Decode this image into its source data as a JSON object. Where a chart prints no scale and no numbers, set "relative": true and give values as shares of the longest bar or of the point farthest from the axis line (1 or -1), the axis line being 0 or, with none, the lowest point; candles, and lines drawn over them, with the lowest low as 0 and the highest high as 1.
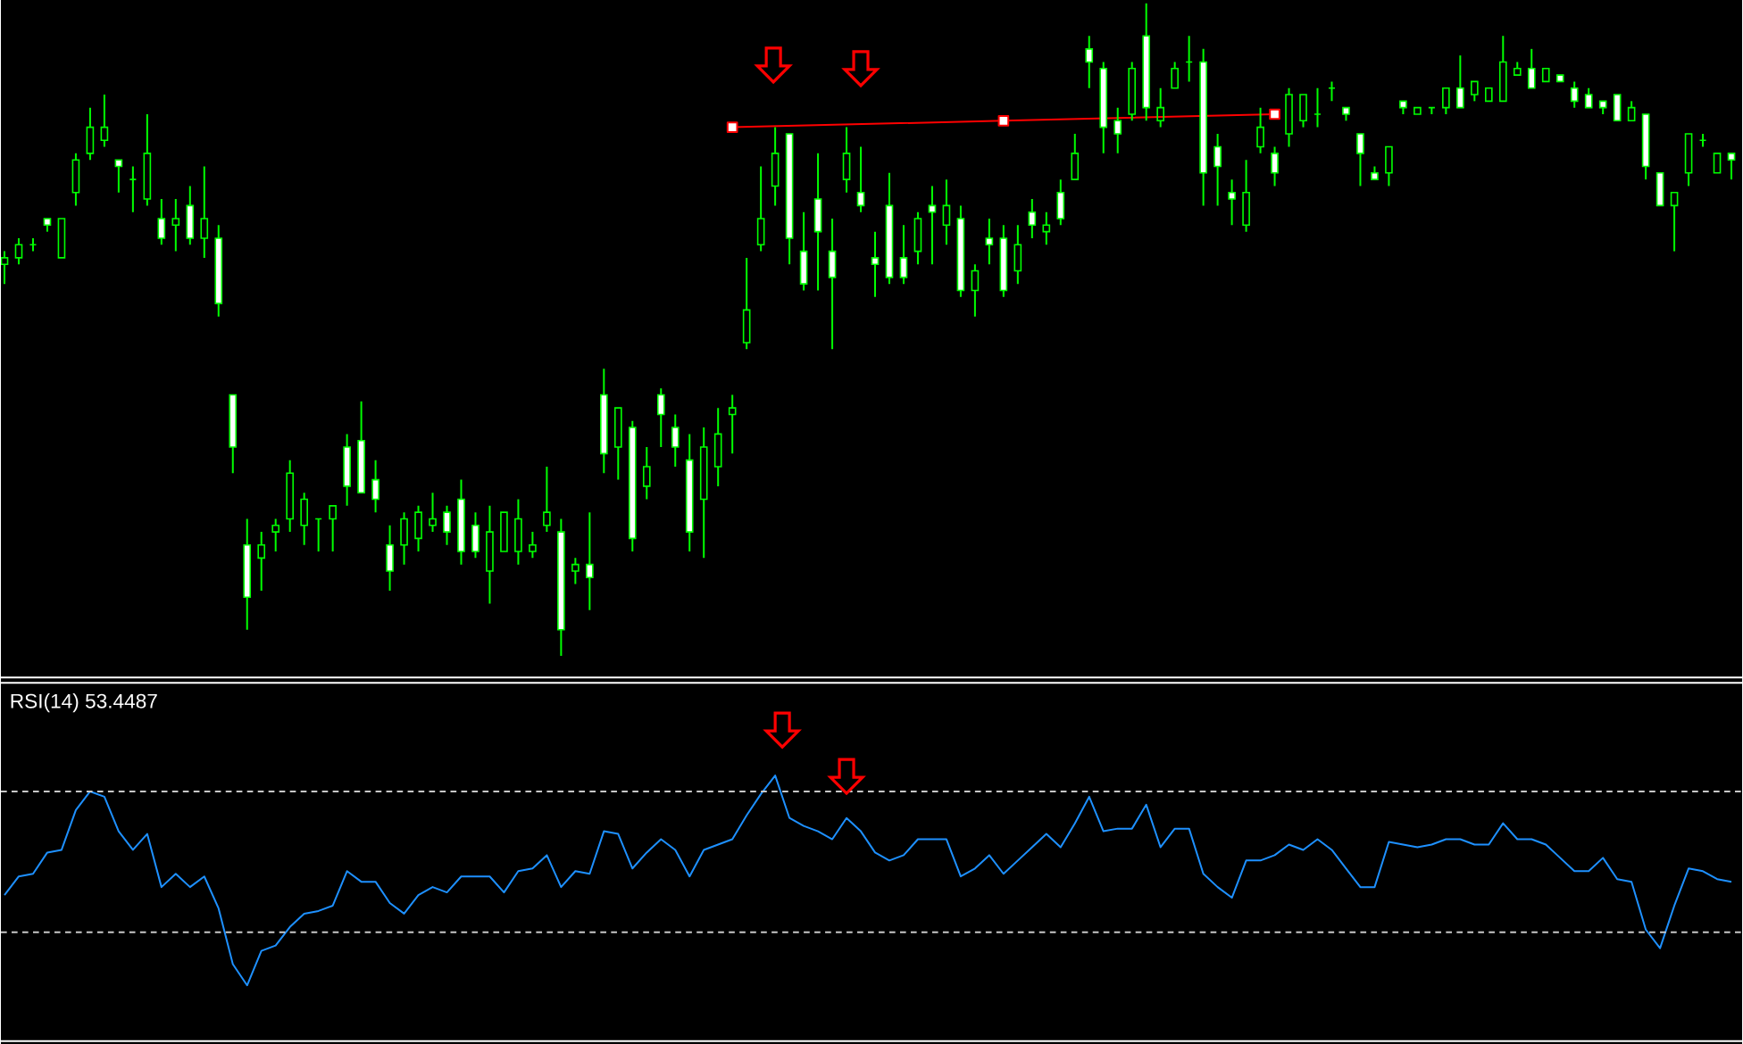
{
  "chart_data": [
    {
      "type": "candlestick",
      "relative": true,
      "color": "#00ff00",
      "categories": [
        null,
        null,
        null,
        null,
        null,
        null,
        null,
        null,
        null,
        null,
        null,
        null,
        null,
        null,
        null,
        null,
        null,
        null,
        null,
        null,
        null,
        null,
        null,
        null,
        null,
        null,
        null,
        null,
        null,
        null,
        null,
        null,
        null,
        null,
        null,
        null,
        null,
        null,
        null,
        null,
        null,
        null,
        null,
        null,
        null,
        null,
        null,
        null,
        null,
        null,
        null,
        null,
        null,
        null,
        null,
        null,
        null,
        null,
        null,
        null,
        null,
        null,
        null,
        null,
        null,
        null,
        null,
        null,
        null,
        null,
        null,
        null,
        null,
        null,
        null,
        null,
        null,
        null,
        null,
        null,
        null,
        null,
        null,
        null,
        null,
        null,
        null,
        null,
        null,
        null,
        null,
        null,
        null,
        null,
        null,
        null,
        null,
        null,
        null,
        null,
        null,
        null,
        null,
        null,
        null,
        null,
        null,
        null,
        null,
        null,
        null,
        null,
        null,
        null,
        null,
        null,
        null,
        null,
        null,
        null,
        null,
        null
      ],
      "ohlc": [
        [
          0.6,
          0.62,
          0.57,
          0.61
        ],
        [
          0.61,
          0.64,
          0.6,
          0.63
        ],
        [
          0.63,
          0.64,
          0.62,
          0.63
        ],
        [
          0.67,
          0.67,
          0.65,
          0.66
        ],
        [
          0.61,
          0.67,
          0.61,
          0.67
        ],
        [
          0.71,
          0.77,
          0.69,
          0.76
        ],
        [
          0.77,
          0.84,
          0.76,
          0.81
        ],
        [
          0.79,
          0.86,
          0.78,
          0.81
        ],
        [
          0.76,
          0.76,
          0.71,
          0.75
        ],
        [
          0.73,
          0.75,
          0.68,
          0.73
        ],
        [
          0.7,
          0.83,
          0.69,
          0.77
        ],
        [
          0.67,
          0.7,
          0.63,
          0.64
        ],
        [
          0.66,
          0.7,
          0.62,
          0.67
        ],
        [
          0.69,
          0.72,
          0.63,
          0.64
        ],
        [
          0.64,
          0.75,
          0.61,
          0.67
        ],
        [
          0.64,
          0.66,
          0.52,
          0.54
        ],
        [
          0.4,
          0.4,
          0.28,
          0.32
        ],
        [
          0.17,
          0.21,
          0.04,
          0.09
        ],
        [
          0.15,
          0.19,
          0.1,
          0.17
        ],
        [
          0.19,
          0.21,
          0.16,
          0.2
        ],
        [
          0.21,
          0.3,
          0.19,
          0.28
        ],
        [
          0.2,
          0.25,
          0.17,
          0.24
        ],
        [
          0.21,
          0.21,
          0.16,
          0.21
        ],
        [
          0.21,
          0.23,
          0.16,
          0.23
        ],
        [
          0.32,
          0.34,
          0.23,
          0.26
        ],
        [
          0.33,
          0.39,
          0.25,
          0.25
        ],
        [
          0.27,
          0.3,
          0.22,
          0.24
        ],
        [
          0.17,
          0.2,
          0.1,
          0.13
        ],
        [
          0.17,
          0.22,
          0.14,
          0.21
        ],
        [
          0.18,
          0.23,
          0.16,
          0.22
        ],
        [
          0.2,
          0.25,
          0.19,
          0.21
        ],
        [
          0.22,
          0.23,
          0.17,
          0.19
        ],
        [
          0.24,
          0.27,
          0.14,
          0.16
        ],
        [
          0.2,
          0.22,
          0.15,
          0.16
        ],
        [
          0.13,
          0.23,
          0.08,
          0.19
        ],
        [
          0.16,
          0.22,
          0.16,
          0.22
        ],
        [
          0.16,
          0.24,
          0.14,
          0.21
        ],
        [
          0.16,
          0.19,
          0.15,
          0.17
        ],
        [
          0.2,
          0.29,
          0.19,
          0.22
        ],
        [
          0.19,
          0.21,
          0,
          0.04
        ],
        [
          0.13,
          0.15,
          0.11,
          0.14
        ],
        [
          0.14,
          0.22,
          0.07,
          0.12
        ],
        [
          0.4,
          0.44,
          0.28,
          0.31
        ],
        [
          0.32,
          0.38,
          0.27,
          0.38
        ],
        [
          0.35,
          0.36,
          0.16,
          0.18
        ],
        [
          0.26,
          0.32,
          0.24,
          0.29
        ],
        [
          0.4,
          0.41,
          0.32,
          0.37
        ],
        [
          0.35,
          0.37,
          0.29,
          0.32
        ],
        [
          0.3,
          0.34,
          0.16,
          0.19
        ],
        [
          0.24,
          0.35,
          0.15,
          0.32
        ],
        [
          0.29,
          0.38,
          0.26,
          0.34
        ],
        [
          0.37,
          0.4,
          0.31,
          0.38
        ],
        [
          0.48,
          0.61,
          0.47,
          0.53
        ],
        [
          0.63,
          0.75,
          0.62,
          0.67
        ],
        [
          0.72,
          0.81,
          0.69,
          0.77
        ],
        [
          0.8,
          0.8,
          0.6,
          0.64
        ],
        [
          0.62,
          0.68,
          0.56,
          0.57
        ],
        [
          0.7,
          0.77,
          0.56,
          0.65
        ],
        [
          0.62,
          0.67,
          0.47,
          0.58
        ],
        [
          0.73,
          0.81,
          0.71,
          0.77
        ],
        [
          0.71,
          0.78,
          0.68,
          0.69
        ],
        [
          0.61,
          0.65,
          0.55,
          0.6
        ],
        [
          0.69,
          0.74,
          0.57,
          0.58
        ],
        [
          0.61,
          0.66,
          0.57,
          0.58
        ],
        [
          0.62,
          0.68,
          0.6,
          0.67
        ],
        [
          0.69,
          0.72,
          0.6,
          0.68
        ],
        [
          0.66,
          0.73,
          0.63,
          0.69
        ],
        [
          0.67,
          0.69,
          0.55,
          0.56
        ],
        [
          0.56,
          0.6,
          0.52,
          0.59
        ],
        [
          0.64,
          0.67,
          0.6,
          0.63
        ],
        [
          0.64,
          0.66,
          0.55,
          0.56
        ],
        [
          0.59,
          0.66,
          0.57,
          0.63
        ],
        [
          0.68,
          0.7,
          0.64,
          0.66
        ],
        [
          0.65,
          0.68,
          0.63,
          0.66
        ],
        [
          0.71,
          0.73,
          0.66,
          0.67
        ],
        [
          0.73,
          0.8,
          0.73,
          0.77
        ],
        [
          0.93,
          0.95,
          0.87,
          0.91
        ],
        [
          0.9,
          0.91,
          0.77,
          0.81
        ],
        [
          0.82,
          0.84,
          0.77,
          0.8
        ],
        [
          0.83,
          0.91,
          0.82,
          0.9
        ],
        [
          0.95,
          1,
          0.82,
          0.84
        ],
        [
          0.82,
          0.87,
          0.81,
          0.84
        ],
        [
          0.87,
          0.91,
          0.87,
          0.9
        ],
        [
          0.91,
          0.95,
          0.88,
          0.91
        ],
        [
          0.91,
          0.93,
          0.69,
          0.74
        ],
        [
          0.78,
          0.8,
          0.69,
          0.75
        ],
        [
          0.71,
          0.73,
          0.66,
          0.7
        ],
        [
          0.66,
          0.76,
          0.65,
          0.71
        ],
        [
          0.78,
          0.84,
          0.77,
          0.81
        ],
        [
          0.77,
          0.78,
          0.72,
          0.74
        ],
        [
          0.8,
          0.87,
          0.78,
          0.86
        ],
        [
          0.82,
          0.86,
          0.81,
          0.86
        ],
        [
          0.83,
          0.87,
          0.81,
          0.83
        ],
        [
          0.87,
          0.88,
          0.85,
          0.87
        ],
        [
          0.84,
          0.84,
          0.82,
          0.83
        ],
        [
          0.8,
          0.8,
          0.72,
          0.77
        ],
        [
          0.74,
          0.75,
          0.73,
          0.73
        ],
        [
          0.74,
          0.78,
          0.72,
          0.78
        ],
        [
          0.85,
          0.85,
          0.83,
          0.84
        ],
        [
          0.83,
          0.84,
          0.83,
          0.84
        ],
        [
          0.84,
          0.84,
          0.83,
          0.84
        ],
        [
          0.84,
          0.87,
          0.83,
          0.87
        ],
        [
          0.87,
          0.92,
          0.84,
          0.84
        ],
        [
          0.86,
          0.88,
          0.85,
          0.88
        ],
        [
          0.85,
          0.87,
          0.85,
          0.87
        ],
        [
          0.85,
          0.95,
          0.85,
          0.91
        ],
        [
          0.89,
          0.91,
          0.89,
          0.9
        ],
        [
          0.9,
          0.93,
          0.87,
          0.87
        ],
        [
          0.88,
          0.9,
          0.88,
          0.9
        ],
        [
          0.89,
          0.89,
          0.88,
          0.88
        ],
        [
          0.87,
          0.88,
          0.84,
          0.85
        ],
        [
          0.86,
          0.87,
          0.84,
          0.84
        ],
        [
          0.85,
          0.85,
          0.83,
          0.84
        ],
        [
          0.86,
          0.86,
          0.82,
          0.82
        ],
        [
          0.82,
          0.85,
          0.82,
          0.84
        ],
        [
          0.83,
          0.83,
          0.73,
          0.75
        ],
        [
          0.74,
          0.74,
          0.69,
          0.69
        ],
        [
          0.69,
          0.71,
          0.62,
          0.71
        ],
        [
          0.74,
          0.8,
          0.72,
          0.8
        ],
        [
          0.79,
          0.8,
          0.78,
          0.79
        ],
        [
          0.74,
          0.77,
          0.74,
          0.77
        ],
        [
          0.77,
          0.77,
          0.73,
          0.76
        ]
      ],
      "series": [
        {
          "type": "line",
          "values": [
            null,
            null,
            null,
            null,
            null,
            null,
            null,
            null,
            null,
            null,
            null,
            null,
            null,
            null,
            null,
            null,
            null,
            null,
            null,
            null,
            null,
            null,
            null,
            null,
            null,
            null,
            null,
            null,
            null,
            null,
            null,
            null,
            null,
            null,
            null,
            null,
            null,
            null,
            null,
            null,
            null,
            null,
            null,
            null,
            null,
            null,
            null,
            null,
            null,
            null,
            null,
            0.81,
            null,
            null,
            null,
            null,
            null,
            null,
            null,
            null,
            null,
            null,
            null,
            null,
            null,
            null,
            null,
            null,
            null,
            null,
            0.82,
            null,
            null,
            null,
            null,
            null,
            null,
            null,
            null,
            null,
            null,
            null,
            null,
            null,
            null,
            null,
            null,
            null,
            null,
            0.83,
            null,
            null,
            null,
            null,
            null,
            null,
            null,
            null,
            null,
            null,
            null,
            null,
            null,
            null,
            null,
            null,
            null,
            null,
            null,
            null,
            null,
            null,
            null,
            null,
            null,
            null,
            null,
            null,
            null,
            null,
            null,
            null
          ],
          "color": "#ff0000",
          "marker": "square"
        }
      ]
    },
    {
      "type": "line",
      "title": "RSI(14) 53.4487",
      "relative": true,
      "categories": [
        null,
        null,
        null,
        null,
        null,
        null,
        null,
        null,
        null,
        null,
        null,
        null,
        null,
        null,
        null,
        null,
        null,
        null,
        null,
        null,
        null,
        null,
        null,
        null,
        null,
        null,
        null,
        null,
        null,
        null,
        null,
        null,
        null,
        null,
        null,
        null,
        null,
        null,
        null,
        null,
        null,
        null,
        null,
        null,
        null,
        null,
        null,
        null,
        null,
        null,
        null,
        null,
        null,
        null,
        null,
        null,
        null,
        null,
        null,
        null,
        null,
        null,
        null,
        null,
        null,
        null,
        null,
        null,
        null,
        null,
        null,
        null,
        null,
        null,
        null,
        null,
        null,
        null,
        null,
        null,
        null,
        null,
        null,
        null,
        null,
        null,
        null,
        null,
        null,
        null,
        null,
        null,
        null,
        null,
        null,
        null,
        null,
        null,
        null,
        null,
        null,
        null,
        null,
        null,
        null,
        null,
        null,
        null,
        null,
        null,
        null,
        null,
        null,
        null,
        null,
        null,
        null,
        null,
        null,
        null,
        null,
        null
      ],
      "series": [
        {
          "color": "#1e90ff",
          "values": [
            0.55,
            0.62,
            0.63,
            0.71,
            0.72,
            0.87,
            0.94,
            0.92,
            0.79,
            0.72,
            0.78,
            0.58,
            0.63,
            0.58,
            0.62,
            0.5,
            0.29,
            0.21,
            0.34,
            0.36,
            0.43,
            0.48,
            0.49,
            0.51,
            0.64,
            0.6,
            0.6,
            0.52,
            0.48,
            0.55,
            0.58,
            0.56,
            0.62,
            0.62,
            0.62,
            0.56,
            0.64,
            0.65,
            0.7,
            0.58,
            0.64,
            0.63,
            0.79,
            0.78,
            0.65,
            0.71,
            0.76,
            0.72,
            0.62,
            0.72,
            0.74,
            0.76,
            0.85,
            0.93,
            1,
            0.84,
            0.81,
            0.79,
            0.76,
            0.84,
            0.79,
            0.71,
            0.68,
            0.7,
            0.76,
            0.76,
            0.76,
            0.62,
            0.65,
            0.7,
            0.63,
            0.68,
            0.73,
            0.78,
            0.73,
            0.82,
            0.92,
            0.79,
            0.8,
            0.8,
            0.89,
            0.73,
            0.8,
            0.8,
            0.63,
            0.58,
            0.54,
            0.68,
            0.68,
            0.7,
            0.74,
            0.72,
            0.76,
            0.72,
            0.65,
            0.58,
            0.58,
            0.75,
            0.74,
            0.73,
            0.74,
            0.76,
            0.76,
            0.74,
            0.74,
            0.82,
            0.76,
            0.76,
            0.74,
            0.69,
            0.64,
            0.64,
            0.69,
            0.61,
            0.6,
            0.42,
            0.35,
            0.51,
            0.65,
            0.64,
            0.61,
            0.6
          ]
        }
      ],
      "ref_lines": [
        {
          "axis": "y",
          "value": 0.94,
          "color": "#c8c8c8",
          "line_style": "dashed"
        },
        {
          "axis": "y",
          "value": 0.41,
          "color": "#c8c8c8",
          "line_style": "dashed"
        }
      ]
    }
  ]
}
